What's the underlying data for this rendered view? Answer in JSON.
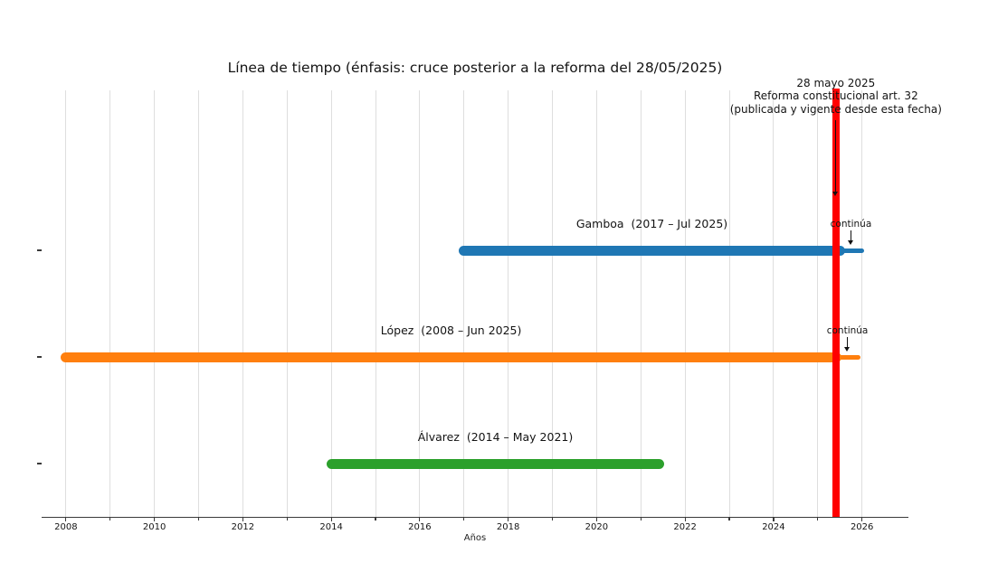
{
  "chart_data": {
    "type": "timeline",
    "title": "Línea de tiempo (énfasis: cruce posterior a la reforma del 28/05/2025)",
    "xlabel": "Años",
    "xlim": [
      2007.45,
      2027.05
    ],
    "ylim": [
      -0.5,
      3.5
    ],
    "grid": true,
    "grid_year_start": 2008,
    "grid_year_end": 2026,
    "x_major_ticks": [
      2008,
      2010,
      2012,
      2014,
      2016,
      2018,
      2020,
      2022,
      2024,
      2026
    ],
    "series": [
      {
        "key": "gamboa",
        "name": "Gamboa",
        "label": "Gamboa  (2017 – Jul 2025)",
        "start": 2017.0,
        "end": 2025.5,
        "row": 2,
        "color": "#1f77b4",
        "continues": true,
        "continue_end": 2026.0,
        "continue_label": "continúa"
      },
      {
        "key": "lopez",
        "name": "López",
        "label": "López  (2008 – Jun 2025)",
        "start": 2008.0,
        "end": 2025.42,
        "row": 1,
        "color": "#ff7f0e",
        "continues": true,
        "continue_end": 2025.92,
        "continue_label": "continúa"
      },
      {
        "key": "alvarez",
        "name": "Álvarez",
        "label": "Álvarez  (2014 – May 2021)",
        "start": 2014.0,
        "end": 2021.42,
        "row": 0,
        "color": "#2ca02c",
        "continues": false
      }
    ],
    "reform_line": {
      "x": 2025.41,
      "color": "#ff0000",
      "arrow_target_row": 2.5,
      "annotation_lines": [
        "28 mayo 2025",
        "Reforma constitucional art. 32",
        "(publicada y vigente desde esta fecha)"
      ]
    },
    "colors": {
      "grid": "#dedede",
      "axis": "#3a3a3a",
      "text": "#141414"
    }
  }
}
